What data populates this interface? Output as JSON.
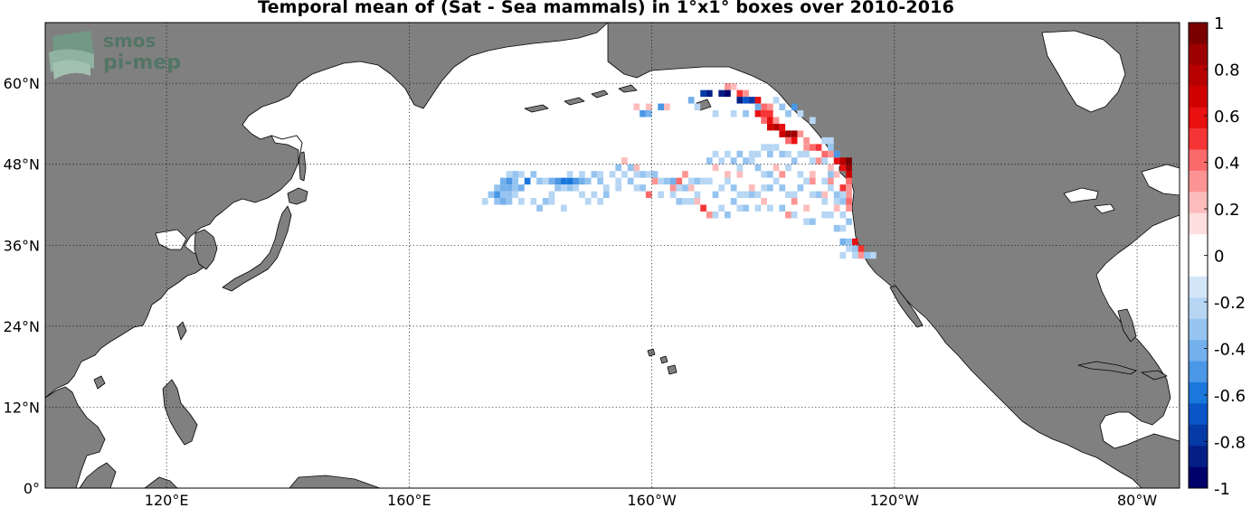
{
  "title": "Temporal mean of (Sat - Sea mammals) in 1°x1° boxes over 2010-2016",
  "logo": {
    "line1": "smos",
    "line2": "pi-mep"
  },
  "map": {
    "lon_range": [
      100,
      287
    ],
    "lat_range": [
      0,
      69
    ],
    "lat_ticks": [
      {
        "value": 0,
        "label": "0°"
      },
      {
        "value": 12,
        "label": "12°N"
      },
      {
        "value": 24,
        "label": "24°N"
      },
      {
        "value": 36,
        "label": "36°N"
      },
      {
        "value": 48,
        "label": "48°N"
      },
      {
        "value": 60,
        "label": "60°N"
      }
    ],
    "lon_ticks": [
      {
        "value": 120,
        "label": "120°E"
      },
      {
        "value": 160,
        "label": "160°E"
      },
      {
        "value": 200,
        "label": "160°W"
      },
      {
        "value": 240,
        "label": "120°W"
      },
      {
        "value": 280,
        "label": "80°W"
      }
    ],
    "colors": {
      "land": "#808080",
      "ocean": "#ffffff",
      "grid": "#000000"
    }
  },
  "colorbar": {
    "labels": [
      "1",
      "0.8",
      "0.6",
      "0.4",
      "0.2",
      "0",
      "-0.2",
      "-0.4",
      "-0.6",
      "-0.8",
      "-1"
    ],
    "colors": [
      "#7a0000",
      "#9c0000",
      "#b80000",
      "#d00000",
      "#e81010",
      "#f53535",
      "#fa6a6a",
      "#fc9494",
      "#fdbcbc",
      "#fedede",
      "#ffffff",
      "#ffffff",
      "#d3e6f8",
      "#b6d6f4",
      "#96c4f0",
      "#74b0ec",
      "#4a97e6",
      "#1a78dc",
      "#0a56c8",
      "#063aa6",
      "#041e86",
      "#00006a"
    ],
    "min": -1,
    "max": 1
  },
  "chart_data": {
    "type": "heatmap",
    "title": "Temporal mean of (Sat - Sea mammals) in 1°x1° boxes over 2010-2016",
    "xlabel": "",
    "ylabel": "",
    "value_range": [
      -1,
      1
    ],
    "cell_size_deg": 1,
    "cells": [
      [
        212,
        59,
        0.3
      ],
      [
        213,
        59,
        0.2
      ],
      [
        214,
        58,
        0.5
      ],
      [
        215,
        58,
        0.35
      ],
      [
        216,
        57,
        0.3
      ],
      [
        217,
        57,
        0.55
      ],
      [
        218,
        56,
        0.45
      ],
      [
        219,
        56,
        0.35
      ],
      [
        217,
        55,
        0.6
      ],
      [
        218,
        55,
        0.5
      ],
      [
        219,
        55,
        0.5
      ],
      [
        218,
        54,
        0.4
      ],
      [
        219,
        54,
        0.6
      ],
      [
        220,
        54,
        0.3
      ],
      [
        219,
        53,
        0.7
      ],
      [
        220,
        53,
        0.8
      ],
      [
        221,
        53,
        0.55
      ],
      [
        222,
        52,
        0.9
      ],
      [
        223,
        52,
        0.9
      ],
      [
        221,
        52,
        0.7
      ],
      [
        224,
        52,
        0.3
      ],
      [
        222,
        51,
        0.4
      ],
      [
        223,
        51,
        0.6
      ],
      [
        225,
        51,
        0.3
      ],
      [
        226,
        50,
        0.4
      ],
      [
        227,
        50,
        0.5
      ],
      [
        225,
        50,
        0.3
      ],
      [
        228,
        49,
        0.45
      ],
      [
        229,
        49,
        0.3
      ],
      [
        230,
        48,
        0.6
      ],
      [
        231,
        48,
        0.8
      ],
      [
        232,
        48,
        0.95
      ],
      [
        232,
        47,
        0.9
      ],
      [
        231,
        47,
        0.6
      ],
      [
        232,
        46,
        0.7
      ],
      [
        232,
        45,
        0.4
      ],
      [
        231,
        44,
        0.5
      ],
      [
        232,
        44,
        0.3
      ],
      [
        232,
        43,
        0.3
      ],
      [
        232,
        42,
        0.4
      ],
      [
        232,
        41,
        0.3
      ],
      [
        230,
        46,
        0.25
      ],
      [
        229,
        45,
        0.3
      ],
      [
        226,
        46,
        0.2
      ],
      [
        221,
        46,
        0.3
      ],
      [
        214,
        46,
        0.25
      ],
      [
        205,
        46,
        0.3
      ],
      [
        204,
        45,
        0.4
      ],
      [
        206,
        44,
        0.2
      ],
      [
        195,
        48,
        0.25
      ],
      [
        197,
        47,
        0.2
      ],
      [
        200,
        45,
        0.3
      ],
      [
        199,
        43,
        0.4
      ],
      [
        207,
        42,
        0.2
      ],
      [
        208,
        41,
        0.5
      ],
      [
        209,
        40,
        0.3
      ],
      [
        233,
        36,
        0.6
      ],
      [
        234,
        35,
        0.5
      ],
      [
        234,
        34,
        0.3
      ],
      [
        223,
        42,
        0.3
      ],
      [
        225,
        41,
        0.2
      ],
      [
        228,
        43,
        0.2
      ],
      [
        230,
        41,
        0.2
      ],
      [
        220,
        47,
        0.2
      ],
      [
        210,
        47,
        0.2
      ],
      [
        212,
        46,
        0.25
      ],
      [
        216,
        44,
        0.2
      ],
      [
        203,
        44,
        0.3
      ],
      [
        218,
        42,
        0.2
      ],
      [
        222,
        40,
        0.3
      ],
      [
        197,
        56,
        0.25
      ],
      [
        199,
        56,
        0.2
      ],
      [
        202,
        56,
        0.2
      ],
      [
        226,
        45,
        0.3
      ],
      [
        229,
        47,
        0.25
      ],
      [
        227,
        48,
        0.3
      ],
      [
        230,
        49,
        0.2
      ],
      [
        201,
        56,
        -0.5
      ],
      [
        206,
        57,
        -0.4
      ],
      [
        207,
        56,
        -0.2
      ],
      [
        208,
        58,
        -0.8
      ],
      [
        209,
        58,
        -0.9
      ],
      [
        211,
        58,
        -0.9
      ],
      [
        212,
        58,
        -0.95
      ],
      [
        214,
        57,
        -0.9
      ],
      [
        215,
        57,
        -0.7
      ],
      [
        216,
        57,
        -0.8
      ],
      [
        217,
        56,
        -0.4
      ],
      [
        220,
        57,
        -0.2
      ],
      [
        221,
        56,
        -0.3
      ],
      [
        222,
        55,
        -0.3
      ],
      [
        223,
        56,
        -0.5
      ],
      [
        224,
        55,
        -0.2
      ],
      [
        226,
        54,
        -0.2
      ],
      [
        228,
        51,
        -0.2
      ],
      [
        229,
        50,
        -0.3
      ],
      [
        229,
        51,
        -0.2
      ],
      [
        230,
        49,
        -0.5
      ],
      [
        210,
        55,
        -0.2
      ],
      [
        213,
        55,
        -0.2
      ],
      [
        215,
        55,
        -0.3
      ],
      [
        198,
        55,
        -0.5
      ],
      [
        199,
        55,
        -0.4
      ],
      [
        218,
        50,
        -0.2
      ],
      [
        219,
        50,
        -0.25
      ],
      [
        220,
        50,
        -0.2
      ],
      [
        221,
        49,
        -0.3
      ],
      [
        222,
        49,
        -0.2
      ],
      [
        217,
        49,
        -0.2
      ],
      [
        215,
        48,
        -0.3
      ],
      [
        216,
        48,
        -0.2
      ],
      [
        176,
        46,
        -0.2
      ],
      [
        177,
        46,
        -0.3
      ],
      [
        178,
        46,
        -0.25
      ],
      [
        175,
        45,
        -0.4
      ],
      [
        176,
        45,
        -0.5
      ],
      [
        177,
        45,
        -0.3
      ],
      [
        174,
        44,
        -0.3
      ],
      [
        175,
        44,
        -0.4
      ],
      [
        176,
        44,
        -0.45
      ],
      [
        177,
        44,
        -0.3
      ],
      [
        178,
        44,
        -0.4
      ],
      [
        173,
        43,
        -0.3
      ],
      [
        174,
        43,
        -0.5
      ],
      [
        175,
        43,
        -0.35
      ],
      [
        176,
        43,
        -0.3
      ],
      [
        177,
        43,
        -0.2
      ],
      [
        172,
        42,
        -0.2
      ],
      [
        174,
        42,
        -0.3
      ],
      [
        175,
        42,
        -0.4
      ],
      [
        176,
        42,
        -0.3
      ],
      [
        178,
        42,
        -0.25
      ],
      [
        180,
        42,
        -0.2
      ],
      [
        181,
        45,
        -0.3
      ],
      [
        182,
        45,
        -0.2
      ],
      [
        183,
        45,
        -0.4
      ],
      [
        184,
        45,
        -0.5
      ],
      [
        185,
        45,
        -0.6
      ],
      [
        186,
        45,
        -0.55
      ],
      [
        187,
        45,
        -0.5
      ],
      [
        188,
        45,
        -0.4
      ],
      [
        189,
        45,
        -0.3
      ],
      [
        184,
        44,
        -0.3
      ],
      [
        185,
        44,
        -0.25
      ],
      [
        186,
        44,
        -0.3
      ],
      [
        187,
        44,
        -0.2
      ],
      [
        183,
        43,
        -0.2
      ],
      [
        188,
        43,
        -0.25
      ],
      [
        190,
        43,
        -0.2
      ],
      [
        182,
        42,
        -0.3
      ],
      [
        183,
        42,
        -0.2
      ],
      [
        181,
        41,
        -0.3
      ],
      [
        179,
        45,
        -0.55
      ],
      [
        180,
        46,
        -0.3
      ],
      [
        186,
        46,
        -0.25
      ],
      [
        188,
        46,
        -0.2
      ],
      [
        190,
        46,
        -0.3
      ],
      [
        191,
        46,
        -0.2
      ],
      [
        193,
        46,
        -0.25
      ],
      [
        194,
        45,
        -0.2
      ],
      [
        191,
        45,
        -0.3
      ],
      [
        192,
        44,
        -0.2
      ],
      [
        194,
        44,
        -0.25
      ],
      [
        192,
        43,
        -0.3
      ],
      [
        189,
        42,
        -0.2
      ],
      [
        191,
        42,
        -0.2
      ],
      [
        185,
        41,
        -0.2
      ],
      [
        196,
        47,
        -0.3
      ],
      [
        197,
        46,
        -0.2
      ],
      [
        198,
        46,
        -0.3
      ],
      [
        199,
        46,
        -0.25
      ],
      [
        200,
        46,
        -0.35
      ],
      [
        196,
        45,
        -0.3
      ],
      [
        197,
        44,
        -0.25
      ],
      [
        198,
        44,
        -0.3
      ],
      [
        201,
        45,
        -0.2
      ],
      [
        202,
        45,
        -0.3
      ],
      [
        203,
        45,
        -0.4
      ],
      [
        204,
        44,
        -0.2
      ],
      [
        205,
        44,
        -0.3
      ],
      [
        206,
        45,
        -0.2
      ],
      [
        207,
        45,
        -0.3
      ],
      [
        208,
        45,
        -0.25
      ],
      [
        209,
        45,
        -0.2
      ],
      [
        201,
        43,
        -0.2
      ],
      [
        203,
        43,
        -0.25
      ],
      [
        204,
        42,
        -0.3
      ],
      [
        205,
        42,
        -0.2
      ],
      [
        206,
        42,
        -0.25
      ],
      [
        207,
        43,
        -0.2
      ],
      [
        210,
        43,
        -0.3
      ],
      [
        211,
        44,
        -0.2
      ],
      [
        212,
        45,
        -0.25
      ],
      [
        213,
        44,
        -0.3
      ],
      [
        214,
        43,
        -0.2
      ],
      [
        215,
        43,
        -0.25
      ],
      [
        216,
        43,
        -0.3
      ],
      [
        217,
        43,
        -0.2
      ],
      [
        218,
        44,
        -0.25
      ],
      [
        219,
        44,
        -0.3
      ],
      [
        220,
        45,
        -0.2
      ],
      [
        221,
        44,
        -0.3
      ],
      [
        222,
        43,
        -0.25
      ],
      [
        223,
        43,
        -0.2
      ],
      [
        224,
        44,
        -0.3
      ],
      [
        225,
        45,
        -0.25
      ],
      [
        226,
        43,
        -0.2
      ],
      [
        227,
        43,
        -0.3
      ],
      [
        228,
        42,
        -0.2
      ],
      [
        213,
        42,
        -0.3
      ],
      [
        214,
        41,
        -0.2
      ],
      [
        215,
        41,
        -0.3
      ],
      [
        217,
        41,
        -0.25
      ],
      [
        211,
        41,
        -0.2
      ],
      [
        210,
        40,
        -0.2
      ],
      [
        212,
        40,
        -0.3
      ],
      [
        219,
        41,
        -0.2
      ],
      [
        221,
        41,
        -0.3
      ],
      [
        223,
        40,
        -0.25
      ],
      [
        225,
        39,
        -0.2
      ],
      [
        226,
        39,
        -0.3
      ],
      [
        228,
        40,
        -0.25
      ],
      [
        229,
        40,
        -0.2
      ],
      [
        230,
        38,
        -0.3
      ],
      [
        231,
        38,
        -0.2
      ],
      [
        230,
        43,
        -0.3
      ],
      [
        231,
        43,
        -0.2
      ],
      [
        230,
        42,
        -0.25
      ],
      [
        231,
        42,
        -0.3
      ],
      [
        231,
        40,
        -0.2
      ],
      [
        232,
        39,
        -0.3
      ],
      [
        231,
        36,
        -0.4
      ],
      [
        232,
        36,
        -0.3
      ],
      [
        232,
        35,
        -0.2
      ],
      [
        233,
        35,
        -0.3
      ],
      [
        231,
        34,
        -0.2
      ],
      [
        233,
        34,
        -0.2
      ],
      [
        235,
        34,
        -0.3
      ],
      [
        236,
        34,
        -0.25
      ],
      [
        210,
        49,
        -0.2
      ],
      [
        212,
        49,
        -0.25
      ],
      [
        214,
        49,
        -0.3
      ],
      [
        216,
        49,
        -0.2
      ],
      [
        219,
        49,
        -0.3
      ],
      [
        224,
        49,
        -0.2
      ],
      [
        225,
        49,
        -0.25
      ],
      [
        223,
        48,
        -0.3
      ],
      [
        226,
        48,
        -0.2
      ],
      [
        228,
        48,
        -0.25
      ],
      [
        229,
        46,
        -0.3
      ],
      [
        228,
        45,
        -0.2
      ],
      [
        229,
        44,
        -0.2
      ],
      [
        209,
        48,
        -0.3
      ],
      [
        211,
        48,
        -0.2
      ],
      [
        213,
        48,
        -0.3
      ],
      [
        214,
        47,
        -0.25
      ],
      [
        217,
        47,
        -0.3
      ],
      [
        218,
        46,
        -0.2
      ],
      [
        219,
        46,
        -0.3
      ],
      [
        222,
        47,
        -0.2
      ],
      [
        224,
        46,
        -0.25
      ],
      [
        195,
        46,
        -0.2
      ],
      [
        194,
        47,
        -0.3
      ]
    ]
  }
}
